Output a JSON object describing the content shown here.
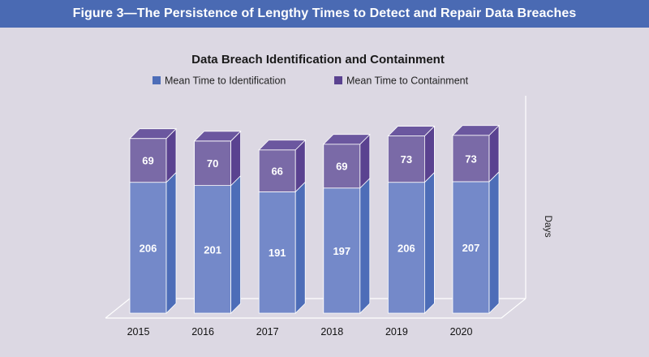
{
  "figure": {
    "banner_title": "Figure 3—The Persistence of Lengthy Times to Detect and Repair Data Breaches"
  },
  "colors": {
    "banner": "#4a6ab3",
    "background": "#dcd8e3",
    "identification_front": "#7489c9",
    "identification_side": "#4d6db8",
    "identification_top": "#8fa2d8",
    "containment_front": "#7a6aa7",
    "containment_side": "#5a4290",
    "containment_top": "#6b579f"
  },
  "chart_data": {
    "type": "bar",
    "stacked": true,
    "three_d": true,
    "title": "Data Breach Identification and Containment",
    "ylabel": "Days",
    "categories": [
      "2015",
      "2016",
      "2017",
      "2018",
      "2019",
      "2020"
    ],
    "series": [
      {
        "name": "Mean Time to Identification",
        "values": [
          206,
          201,
          191,
          197,
          206,
          207
        ]
      },
      {
        "name": "Mean Time to Containment",
        "values": [
          69,
          70,
          66,
          69,
          73,
          73
        ]
      }
    ],
    "ylim": [
      0,
      290
    ],
    "legend_position": "top"
  }
}
